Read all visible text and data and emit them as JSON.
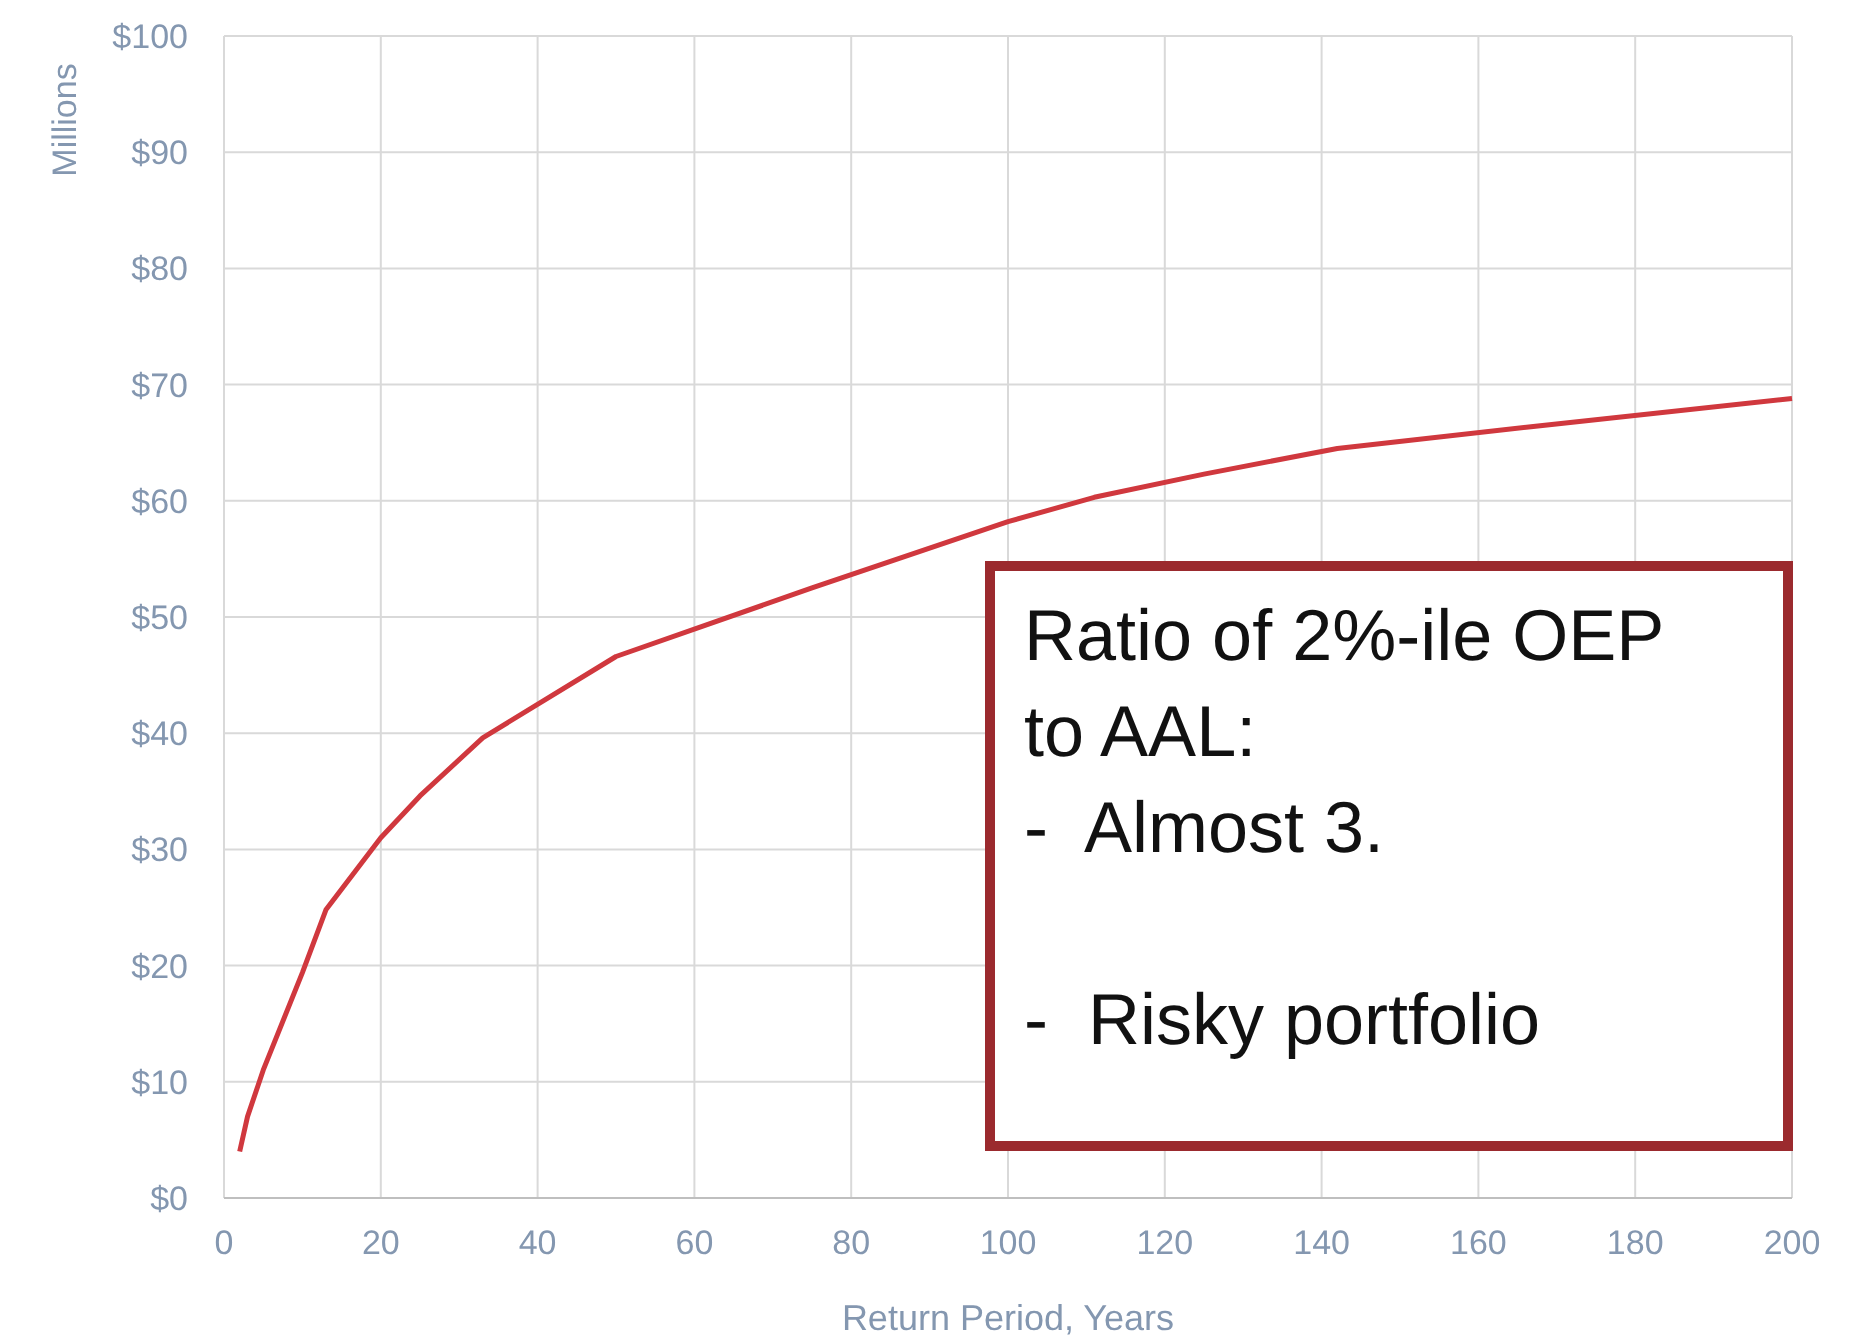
{
  "chart_data": {
    "type": "line",
    "xlabel": "Return Period, Years",
    "ylabel": "Millions",
    "series": [
      {
        "color": "#d0383e",
        "x": [
          2,
          3,
          5,
          10,
          13,
          20,
          25,
          33,
          50,
          75,
          100,
          111,
          125,
          142,
          167,
          200
        ],
        "values": [
          4,
          7,
          11,
          19.4,
          24.8,
          31,
          34.6,
          39.6,
          46.6,
          52.5,
          58.2,
          60.3,
          62.3,
          64.5,
          66.4,
          68.8
        ]
      }
    ],
    "xlim": [
      0,
      200
    ],
    "xticks": [
      0,
      20,
      40,
      60,
      80,
      100,
      120,
      140,
      160,
      180,
      200
    ],
    "ylim": [
      0,
      100
    ],
    "yticks": [
      {
        "value": 0,
        "label": "$0"
      },
      {
        "value": 10,
        "label": "$10"
      },
      {
        "value": 20,
        "label": "$20"
      },
      {
        "value": 30,
        "label": "$30"
      },
      {
        "value": 40,
        "label": "$40"
      },
      {
        "value": 50,
        "label": "$50"
      },
      {
        "value": 60,
        "label": "$60"
      },
      {
        "value": 70,
        "label": "$70"
      },
      {
        "value": 80,
        "label": "$80"
      },
      {
        "value": 90,
        "label": "$90"
      },
      {
        "value": 100,
        "label": "$100"
      }
    ],
    "grid": true,
    "marker": "none",
    "line_style": "solid",
    "annotations": [
      "Ratio of 2%-ile OEP\nto AAL:\n-  Almost 3.\n\n-  Risky portfolio"
    ]
  }
}
